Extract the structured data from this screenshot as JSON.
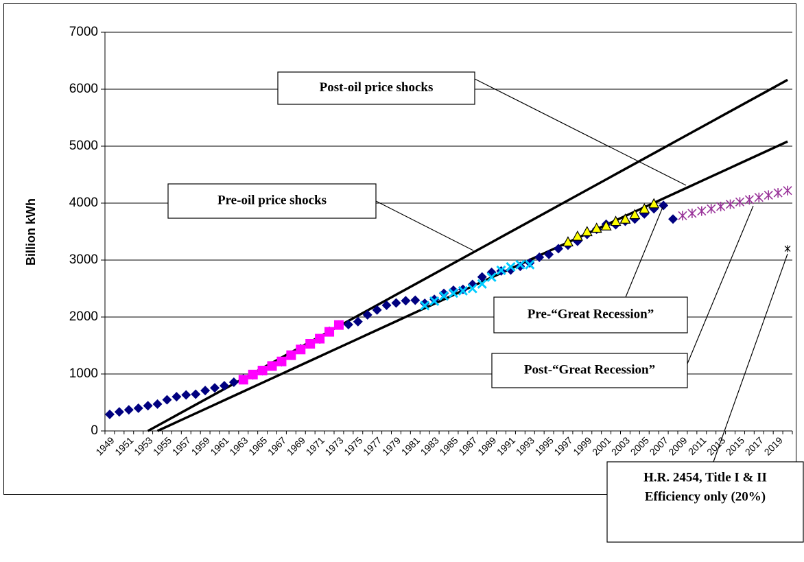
{
  "chart_data": {
    "type": "line",
    "y_label": "Billion kWh",
    "ylim": [
      0,
      7000
    ],
    "yticks": [
      0,
      1000,
      2000,
      3000,
      4000,
      5000,
      6000,
      7000
    ],
    "grid": true,
    "categories": [
      "1949",
      null,
      "1951",
      null,
      "1953",
      null,
      "1955",
      null,
      "1957",
      null,
      "1959",
      null,
      "1961",
      null,
      "1963",
      null,
      "1965",
      null,
      "1967",
      null,
      "1969",
      null,
      "1971",
      null,
      "1973",
      null,
      "1975",
      null,
      "1977",
      null,
      "1979",
      null,
      "1981",
      null,
      "1983",
      null,
      "1985",
      null,
      "1987",
      null,
      "1989",
      null,
      "1991",
      null,
      "1993",
      null,
      "1995",
      null,
      "1997",
      null,
      "1999",
      null,
      "2001",
      null,
      "2003",
      null,
      "2005",
      null,
      "2007",
      null,
      "2009",
      null,
      "2011",
      null,
      "2013",
      null,
      "2015",
      null,
      "2017",
      null,
      "2019",
      null
    ],
    "series": [
      {
        "marker": "none",
        "line": true,
        "color": "#000000",
        "values": [
          null,
          null,
          null,
          null,
          0,
          92,
          184,
          276,
          368,
          460,
          552,
          644,
          736,
          828,
          920,
          1012,
          1104,
          1196,
          1288,
          1380,
          1472,
          1564,
          1656,
          1748,
          1840,
          1932,
          2024,
          2116,
          2208,
          2300,
          2392,
          2484,
          2576,
          2668,
          2760,
          2852,
          2944,
          3036,
          3128,
          3220,
          3312,
          3404,
          3496,
          3588,
          3680,
          3772,
          3864,
          3956,
          4048,
          4140,
          4232,
          4324,
          4416,
          4508,
          4600,
          4692,
          4784,
          4876,
          4968,
          5060,
          5152,
          5244,
          5336,
          5428,
          5520,
          5612,
          5704,
          5796,
          5888,
          5980,
          6072,
          6164
        ]
      },
      {
        "marker": "none",
        "line": true,
        "color": "#000000",
        "values": [
          null,
          null,
          null,
          null,
          null,
          0,
          77,
          154,
          231,
          308,
          385,
          462,
          539,
          616,
          693,
          770,
          847,
          924,
          1001,
          1078,
          1155,
          1232,
          1309,
          1386,
          1463,
          1540,
          1617,
          1694,
          1771,
          1848,
          1925,
          2002,
          2079,
          2156,
          2233,
          2310,
          2387,
          2464,
          2541,
          2618,
          2695,
          2772,
          2849,
          2926,
          3003,
          3080,
          3157,
          3234,
          3311,
          3388,
          3465,
          3542,
          3619,
          3696,
          3773,
          3850,
          3927,
          4004,
          4081,
          4158,
          4235,
          4312,
          4389,
          4466,
          4543,
          4620,
          4697,
          4774,
          4851,
          4928,
          5005,
          5082
        ]
      },
      {
        "marker": "diamond",
        "color": "#000080",
        "values": [
          291,
          334,
          370,
          399,
          443,
          472,
          547,
          601,
          632,
          645,
          710,
          756,
          794,
          855,
          917,
          984,
          1055,
          1144,
          1214,
          1329,
          1445,
          1532,
          1613,
          1750,
          1861,
          1867,
          1918,
          2038,
          2124,
          2206,
          2247,
          2286,
          2295,
          2241,
          2310,
          2416,
          2470,
          2487,
          2572,
          2704,
          2784,
          2808,
          2825,
          2890,
          2950,
          3050,
          3100,
          3200,
          3260,
          3330,
          3450,
          3540,
          3630,
          3620,
          3680,
          3720,
          3810,
          3900,
          3960,
          3720,
          null,
          null,
          null,
          null,
          null,
          null,
          null,
          null,
          null,
          null,
          null,
          null
        ]
      },
      {
        "marker": "square",
        "color": "#ff00ff",
        "values": [
          null,
          null,
          null,
          null,
          null,
          null,
          null,
          null,
          null,
          null,
          null,
          null,
          null,
          null,
          900,
          990,
          1060,
          1140,
          1220,
          1330,
          1430,
          1530,
          1620,
          1740,
          1860,
          null,
          null,
          null,
          null,
          null,
          null,
          null,
          null,
          null,
          null,
          null,
          null,
          null,
          null,
          null,
          null,
          null,
          null,
          null,
          null,
          null,
          null,
          null,
          null,
          null,
          null,
          null,
          null,
          null,
          null,
          null,
          null,
          null,
          null,
          null,
          null,
          null,
          null,
          null,
          null,
          null,
          null,
          null,
          null,
          null,
          null,
          null
        ]
      },
      {
        "marker": "x",
        "color": "#00ccff",
        "values": [
          null,
          null,
          null,
          null,
          null,
          null,
          null,
          null,
          null,
          null,
          null,
          null,
          null,
          null,
          null,
          null,
          null,
          null,
          null,
          null,
          null,
          null,
          null,
          null,
          null,
          null,
          null,
          null,
          null,
          null,
          null,
          null,
          null,
          2200,
          2280,
          2370,
          2420,
          2460,
          2500,
          2580,
          2700,
          2820,
          2880,
          2920,
          2920,
          null,
          null,
          null,
          null,
          null,
          null,
          null,
          null,
          null,
          null,
          null,
          null,
          null,
          null,
          null,
          null,
          null,
          null,
          null,
          null,
          null,
          null,
          null,
          null,
          null,
          null,
          null
        ]
      },
      {
        "marker": "triangle",
        "color": "#ffff00",
        "values": [
          null,
          null,
          null,
          null,
          null,
          null,
          null,
          null,
          null,
          null,
          null,
          null,
          null,
          null,
          null,
          null,
          null,
          null,
          null,
          null,
          null,
          null,
          null,
          null,
          null,
          null,
          null,
          null,
          null,
          null,
          null,
          null,
          null,
          null,
          null,
          null,
          null,
          null,
          null,
          null,
          null,
          null,
          null,
          null,
          null,
          null,
          null,
          null,
          3320,
          3420,
          3500,
          3560,
          3600,
          3680,
          3720,
          3800,
          3900,
          3990,
          null,
          null,
          null,
          null,
          null,
          null,
          null,
          null,
          null,
          null,
          null,
          null,
          null,
          null
        ]
      },
      {
        "marker": "asterisk",
        "color": "#993399",
        "values": [
          null,
          null,
          null,
          null,
          null,
          null,
          null,
          null,
          null,
          null,
          null,
          null,
          null,
          null,
          null,
          null,
          null,
          null,
          null,
          null,
          null,
          null,
          null,
          null,
          null,
          null,
          null,
          null,
          null,
          null,
          null,
          null,
          null,
          null,
          null,
          null,
          null,
          null,
          null,
          null,
          null,
          null,
          null,
          null,
          null,
          null,
          null,
          null,
          null,
          null,
          null,
          null,
          null,
          null,
          null,
          null,
          null,
          null,
          null,
          null,
          3780,
          3820,
          3860,
          3900,
          3940,
          3980,
          4020,
          4060,
          4100,
          4140,
          4180,
          4220
        ]
      },
      {
        "marker": "star",
        "color": "#000000",
        "values": [
          null,
          null,
          null,
          null,
          null,
          null,
          null,
          null,
          null,
          null,
          null,
          null,
          null,
          null,
          null,
          null,
          null,
          null,
          null,
          null,
          null,
          null,
          null,
          null,
          null,
          null,
          null,
          null,
          null,
          null,
          null,
          null,
          null,
          null,
          null,
          null,
          null,
          null,
          null,
          null,
          null,
          null,
          null,
          null,
          null,
          null,
          null,
          null,
          null,
          null,
          null,
          null,
          null,
          null,
          null,
          null,
          null,
          null,
          null,
          null,
          null,
          null,
          null,
          null,
          null,
          null,
          null,
          null,
          null,
          null,
          null,
          3200
        ]
      }
    ],
    "annotations": [
      {
        "text": "Post-oil price shocks"
      },
      {
        "text": "Pre-oil price shocks"
      },
      {
        "text": "Pre-“Great Recession”"
      },
      {
        "text": "Post-“Great Recession”"
      },
      {
        "lines": [
          "H.R. 2454, Title I & II",
          "Efficiency only (20%)"
        ]
      }
    ]
  }
}
